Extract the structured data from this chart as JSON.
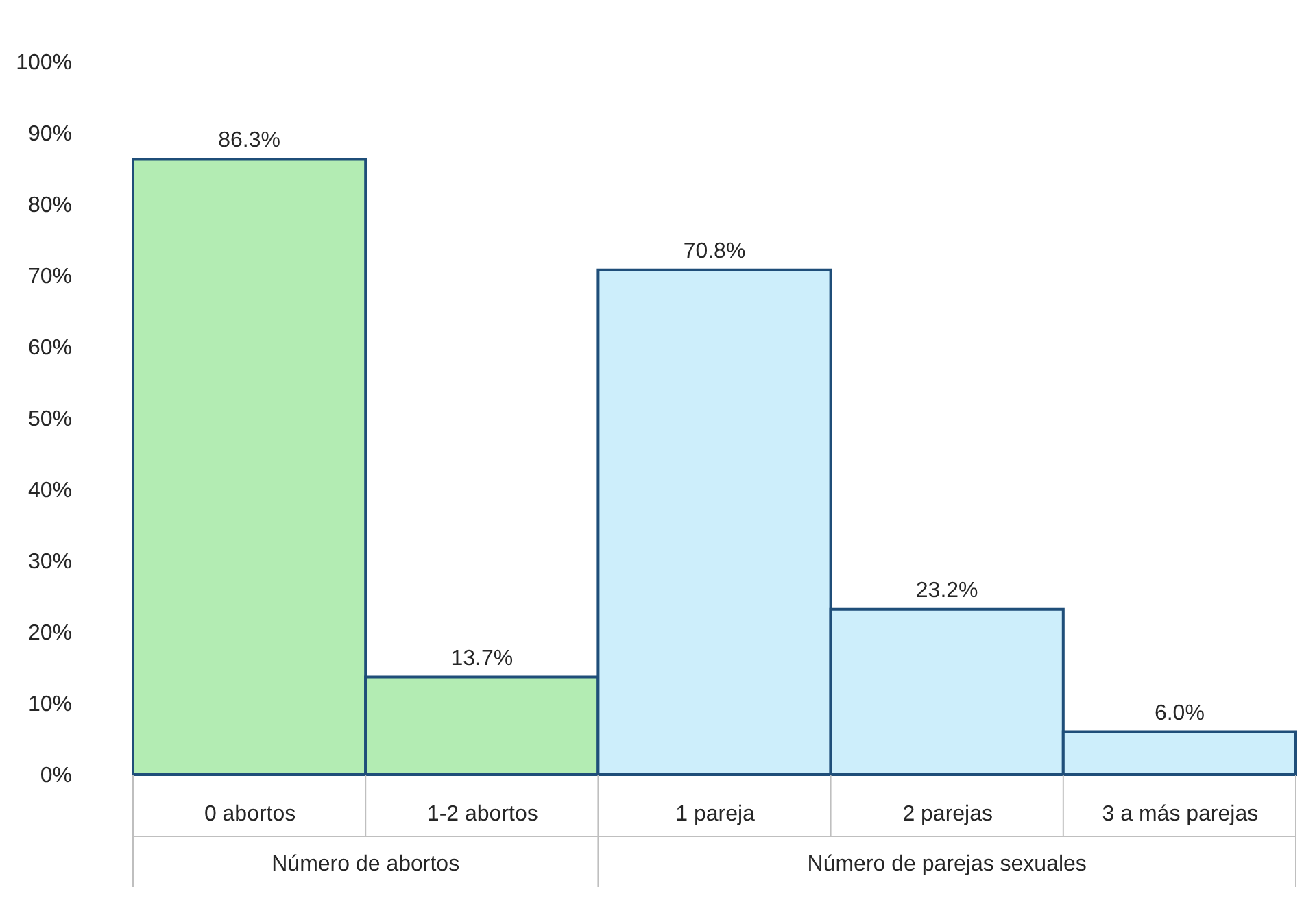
{
  "chart_data": {
    "type": "bar",
    "categories": [
      "0 abortos",
      "1-2 abortos",
      "1 pareja",
      "2 parejas",
      "3 a más parejas"
    ],
    "values": [
      86.3,
      13.7,
      70.8,
      23.2,
      6.0
    ],
    "colors": [
      "#b3ecb3",
      "#b3ecb3",
      "#cdeefb",
      "#cdeefb",
      "#cdeefb"
    ],
    "value_labels": [
      "86.3%",
      "13.7%",
      "70.8%",
      "23.2%",
      "6.0%"
    ],
    "annotations": [
      "Número de abortos",
      "Número de parejas sexuales"
    ],
    "ylim": [
      0,
      100
    ],
    "yticks": [
      {
        "value": 0,
        "label": "0%"
      },
      {
        "value": 10,
        "label": "10%"
      },
      {
        "value": 20,
        "label": "20%"
      },
      {
        "value": 30,
        "label": "30%"
      },
      {
        "value": 40,
        "label": "40%"
      },
      {
        "value": 50,
        "label": "50%"
      },
      {
        "value": 60,
        "label": "60%"
      },
      {
        "value": 70,
        "label": "70%"
      },
      {
        "value": 80,
        "label": "80%"
      },
      {
        "value": 90,
        "label": "90%"
      },
      {
        "value": 100,
        "label": "100%"
      }
    ],
    "grid": false
  }
}
